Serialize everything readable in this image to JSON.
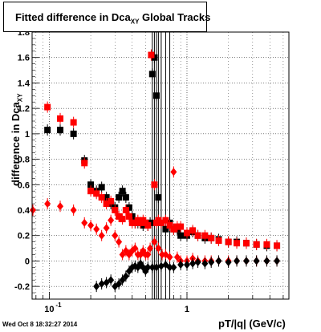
{
  "chart_data": {
    "type": "scatter",
    "title": "Fitted difference in Dca",
    "title_sub": "XY",
    "title_suffix": " Global Tracks",
    "xlabel": "pT/|q| (GeV/c)",
    "ylabel": "difference in Dca",
    "ylabel_sub": "XY",
    "x_scale": "log",
    "xlim": [
      0.075,
      5.5
    ],
    "ylim": [
      -0.3,
      1.8
    ],
    "grid": true,
    "x_ticks": [
      {
        "value": 0.1,
        "label": "10",
        "exp": "-1"
      },
      {
        "value": 1,
        "label": "1",
        "exp": ""
      }
    ],
    "y_ticks": [
      -0.2,
      0,
      0.2,
      0.4,
      0.6,
      0.8,
      1,
      1.2,
      1.4,
      1.6,
      1.8
    ],
    "series": [
      {
        "color": "#000000",
        "marker": "square",
        "points": [
          [
            0.097,
            1.03
          ],
          [
            0.12,
            1.03
          ],
          [
            0.15,
            1.0
          ],
          [
            0.18,
            0.79
          ],
          [
            0.2,
            0.6
          ],
          [
            0.22,
            0.55
          ],
          [
            0.24,
            0.58
          ],
          [
            0.26,
            0.5
          ],
          [
            0.28,
            0.45
          ],
          [
            0.3,
            0.42
          ],
          [
            0.32,
            0.5
          ],
          [
            0.34,
            0.55
          ],
          [
            0.36,
            0.5
          ],
          [
            0.38,
            0.42
          ],
          [
            0.4,
            0.35
          ],
          [
            0.42,
            0.3
          ],
          [
            0.44,
            0.3
          ],
          [
            0.46,
            0.3
          ],
          [
            0.48,
            0.28
          ],
          [
            0.5,
            0.3
          ],
          [
            0.52,
            0.28
          ],
          [
            0.54,
            0.3
          ],
          [
            0.56,
            1.47
          ],
          [
            0.58,
            1.6
          ],
          [
            0.6,
            1.3
          ],
          [
            0.62,
            0.5
          ],
          [
            0.65,
            0.3
          ],
          [
            0.7,
            0.25
          ],
          [
            0.75,
            0.3
          ],
          [
            0.8,
            0.25
          ],
          [
            0.85,
            0.25
          ],
          [
            0.9,
            0.2
          ],
          [
            1.0,
            0.2
          ],
          [
            1.1,
            0.23
          ],
          [
            1.2,
            0.2
          ],
          [
            1.35,
            0.18
          ],
          [
            1.5,
            0.18
          ],
          [
            1.7,
            0.17
          ],
          [
            2.0,
            0.15
          ],
          [
            2.3,
            0.15
          ],
          [
            2.7,
            0.14
          ],
          [
            3.2,
            0.13
          ],
          [
            3.8,
            0.12
          ],
          [
            4.5,
            0.12
          ]
        ]
      },
      {
        "color": "#ff0000",
        "marker": "square",
        "points": [
          [
            0.097,
            1.21
          ],
          [
            0.12,
            1.12
          ],
          [
            0.15,
            1.09
          ],
          [
            0.18,
            0.77
          ],
          [
            0.2,
            0.55
          ],
          [
            0.22,
            0.53
          ],
          [
            0.24,
            0.5
          ],
          [
            0.26,
            0.45
          ],
          [
            0.28,
            0.47
          ],
          [
            0.3,
            0.4
          ],
          [
            0.32,
            0.35
          ],
          [
            0.34,
            0.33
          ],
          [
            0.36,
            0.4
          ],
          [
            0.38,
            0.35
          ],
          [
            0.4,
            0.3
          ],
          [
            0.42,
            0.3
          ],
          [
            0.44,
            0.32
          ],
          [
            0.46,
            0.3
          ],
          [
            0.48,
            0.32
          ],
          [
            0.5,
            0.3
          ],
          [
            0.52,
            0.28
          ],
          [
            0.55,
            1.62
          ],
          [
            0.58,
            0.6
          ],
          [
            0.6,
            0.3
          ],
          [
            0.62,
            0.32
          ],
          [
            0.65,
            0.3
          ],
          [
            0.7,
            0.32
          ],
          [
            0.75,
            0.28
          ],
          [
            0.8,
            0.25
          ],
          [
            0.85,
            0.27
          ],
          [
            0.9,
            0.27
          ],
          [
            1.0,
            0.22
          ],
          [
            1.1,
            0.24
          ],
          [
            1.2,
            0.2
          ],
          [
            1.35,
            0.2
          ],
          [
            1.5,
            0.18
          ],
          [
            1.7,
            0.16
          ],
          [
            2.0,
            0.15
          ],
          [
            2.3,
            0.14
          ],
          [
            2.7,
            0.14
          ],
          [
            3.2,
            0.13
          ],
          [
            3.8,
            0.13
          ],
          [
            4.5,
            0.12
          ]
        ]
      },
      {
        "color": "#ff0000",
        "marker": "diamond",
        "points": [
          [
            0.076,
            0.4
          ],
          [
            0.097,
            0.45
          ],
          [
            0.12,
            0.43
          ],
          [
            0.15,
            0.4
          ],
          [
            0.18,
            0.3
          ],
          [
            0.2,
            0.28
          ],
          [
            0.22,
            0.25
          ],
          [
            0.24,
            0.2
          ],
          [
            0.26,
            0.26
          ],
          [
            0.28,
            0.32
          ],
          [
            0.3,
            0.2
          ],
          [
            0.32,
            0.15
          ],
          [
            0.34,
            0.05
          ],
          [
            0.36,
            0.08
          ],
          [
            0.38,
            0.05
          ],
          [
            0.4,
            0.08
          ],
          [
            0.42,
            0.1
          ],
          [
            0.44,
            0.05
          ],
          [
            0.46,
            0.05
          ],
          [
            0.48,
            0.08
          ],
          [
            0.5,
            0.05
          ],
          [
            0.52,
            0.05
          ],
          [
            0.54,
            0.1
          ],
          [
            0.58,
            0.15
          ],
          [
            0.62,
            0.1
          ],
          [
            0.66,
            0.05
          ],
          [
            0.7,
            0.05
          ],
          [
            0.75,
            0.03
          ],
          [
            0.8,
            0.7
          ],
          [
            0.85,
            0.03
          ],
          [
            0.9,
            0.0
          ],
          [
            1.0,
            0.0
          ],
          [
            1.1,
            0.02
          ],
          [
            1.2,
            0.0
          ],
          [
            1.35,
            0.0
          ],
          [
            1.5,
            0.0
          ],
          [
            1.7,
            0.0
          ],
          [
            2.0,
            0.0
          ],
          [
            2.3,
            0.0
          ],
          [
            2.7,
            0.0
          ],
          [
            3.2,
            0.0
          ],
          [
            3.8,
            0.0
          ],
          [
            4.5,
            0.0
          ]
        ]
      },
      {
        "color": "#000000",
        "marker": "diamond",
        "points": [
          [
            0.22,
            -0.2
          ],
          [
            0.24,
            -0.18
          ],
          [
            0.26,
            -0.17
          ],
          [
            0.28,
            -0.15
          ],
          [
            0.3,
            -0.2
          ],
          [
            0.32,
            -0.18
          ],
          [
            0.34,
            -0.15
          ],
          [
            0.36,
            -0.12
          ],
          [
            0.38,
            -0.08
          ],
          [
            0.4,
            -0.05
          ],
          [
            0.42,
            -0.04
          ],
          [
            0.44,
            -0.05
          ],
          [
            0.46,
            -0.02
          ],
          [
            0.48,
            -0.05
          ],
          [
            0.5,
            -0.08
          ],
          [
            0.52,
            -0.05
          ],
          [
            0.56,
            -0.05
          ],
          [
            0.6,
            -0.05
          ],
          [
            0.65,
            -0.04
          ],
          [
            0.7,
            -0.03
          ],
          [
            0.75,
            -0.05
          ],
          [
            0.8,
            -0.05
          ],
          [
            0.9,
            -0.03
          ],
          [
            1.0,
            -0.03
          ],
          [
            1.1,
            -0.02
          ],
          [
            1.2,
            -0.01
          ],
          [
            1.35,
            -0.02
          ],
          [
            1.5,
            -0.01
          ],
          [
            1.7,
            0.0
          ],
          [
            2.0,
            -0.01
          ],
          [
            2.3,
            0.0
          ],
          [
            2.7,
            0.0
          ],
          [
            3.2,
            0.0
          ],
          [
            3.8,
            0.0
          ],
          [
            4.5,
            0.0
          ]
        ]
      }
    ]
  },
  "timestamp": "Wed Oct  8 18:32:27 2014"
}
